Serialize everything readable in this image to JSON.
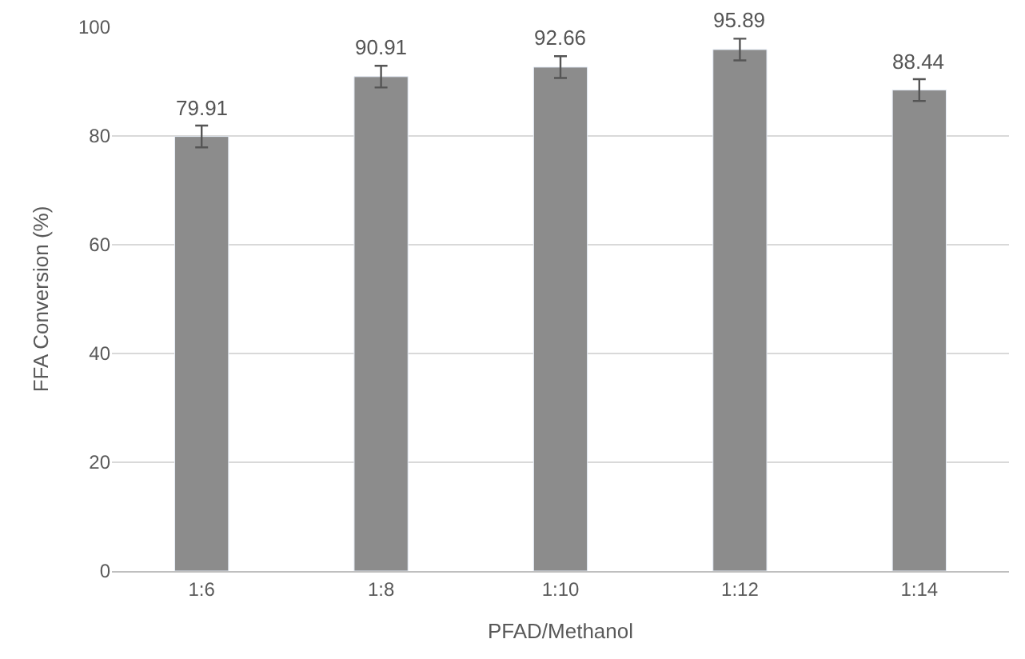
{
  "chart_data": {
    "type": "bar",
    "xlabel": "PFAD/Methanol",
    "ylabel": "FFA Conversion (%)",
    "categories": [
      "1:6",
      "1:8",
      "1:10",
      "1:12",
      "1:14"
    ],
    "values": [
      79.91,
      90.91,
      92.66,
      95.89,
      88.44
    ],
    "errors": [
      2,
      2,
      2,
      2,
      2
    ],
    "color": "#8c8c8c",
    "ylim": [
      0,
      100
    ],
    "yticks": [
      0,
      20,
      40,
      60,
      80,
      100
    ],
    "grid": "y",
    "data_labels": true
  }
}
